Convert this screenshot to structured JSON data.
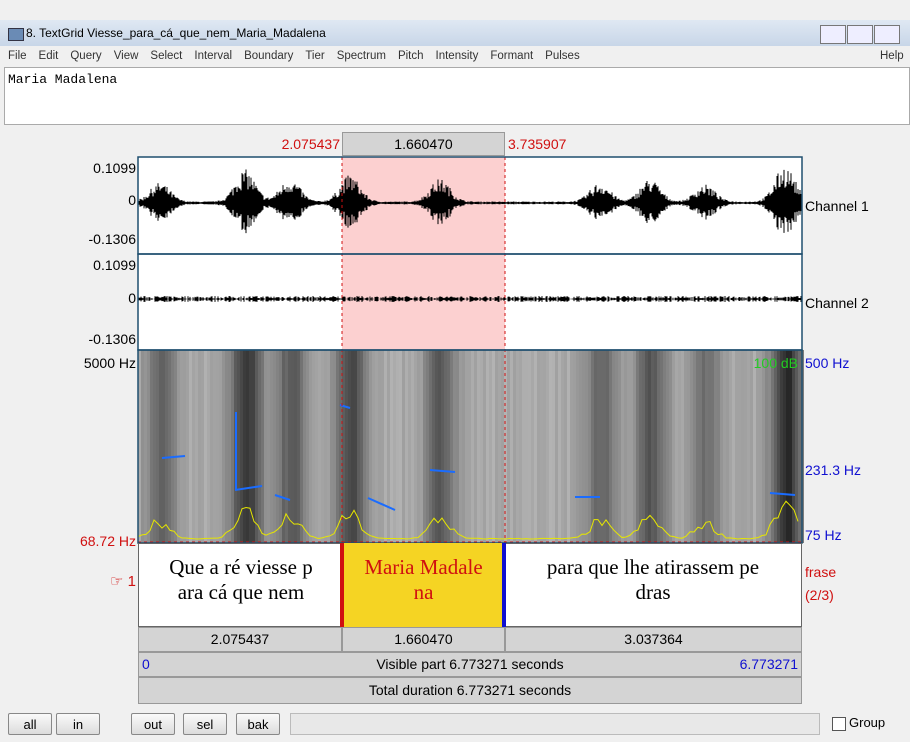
{
  "window": {
    "title": "8. TextGrid Viesse_para_cá_que_nem_Maria_Madalena"
  },
  "menu": [
    "File",
    "Edit",
    "Query",
    "View",
    "Select",
    "Interval",
    "Boundary",
    "Tier",
    "Spectrum",
    "Pitch",
    "Intensity",
    "Formant",
    "Pulses"
  ],
  "help": "Help",
  "text_area": "Maria Madalena",
  "selection": {
    "start": "2.075437",
    "duration": "1.660470",
    "end": "3.735907"
  },
  "channel1": {
    "max": "0.1099",
    "zero": "0",
    "min": "-0.1306",
    "label": "Channel 1"
  },
  "channel2": {
    "max": "0.1099",
    "zero": "0",
    "min": "-0.1306",
    "label": "Channel 2"
  },
  "spectrogram": {
    "top": "5000 Hz",
    "bottom": "68.72 Hz",
    "db": "100 dB",
    "pitch_top": "500 Hz",
    "pitch_mid": "231.3 Hz",
    "pitch_bottom": "75 Hz"
  },
  "tier": {
    "number": "☞ 1",
    "name": "frase",
    "count": "(2/3)",
    "intervals": [
      [
        "Que a ré viesse p",
        "ara cá que nem"
      ],
      [
        "Maria Madale",
        "na"
      ],
      [
        "para que lhe atirassem pe",
        "dras"
      ]
    ]
  },
  "durations": [
    "2.075437",
    "1.660470",
    "3.037364"
  ],
  "visible": {
    "start": "0",
    "text": "Visible part 6.773271 seconds",
    "end": "6.773271"
  },
  "total": "Total duration 6.773271 seconds",
  "buttons": [
    "all",
    "in",
    "out",
    "sel",
    "bak"
  ],
  "group": "Group"
}
